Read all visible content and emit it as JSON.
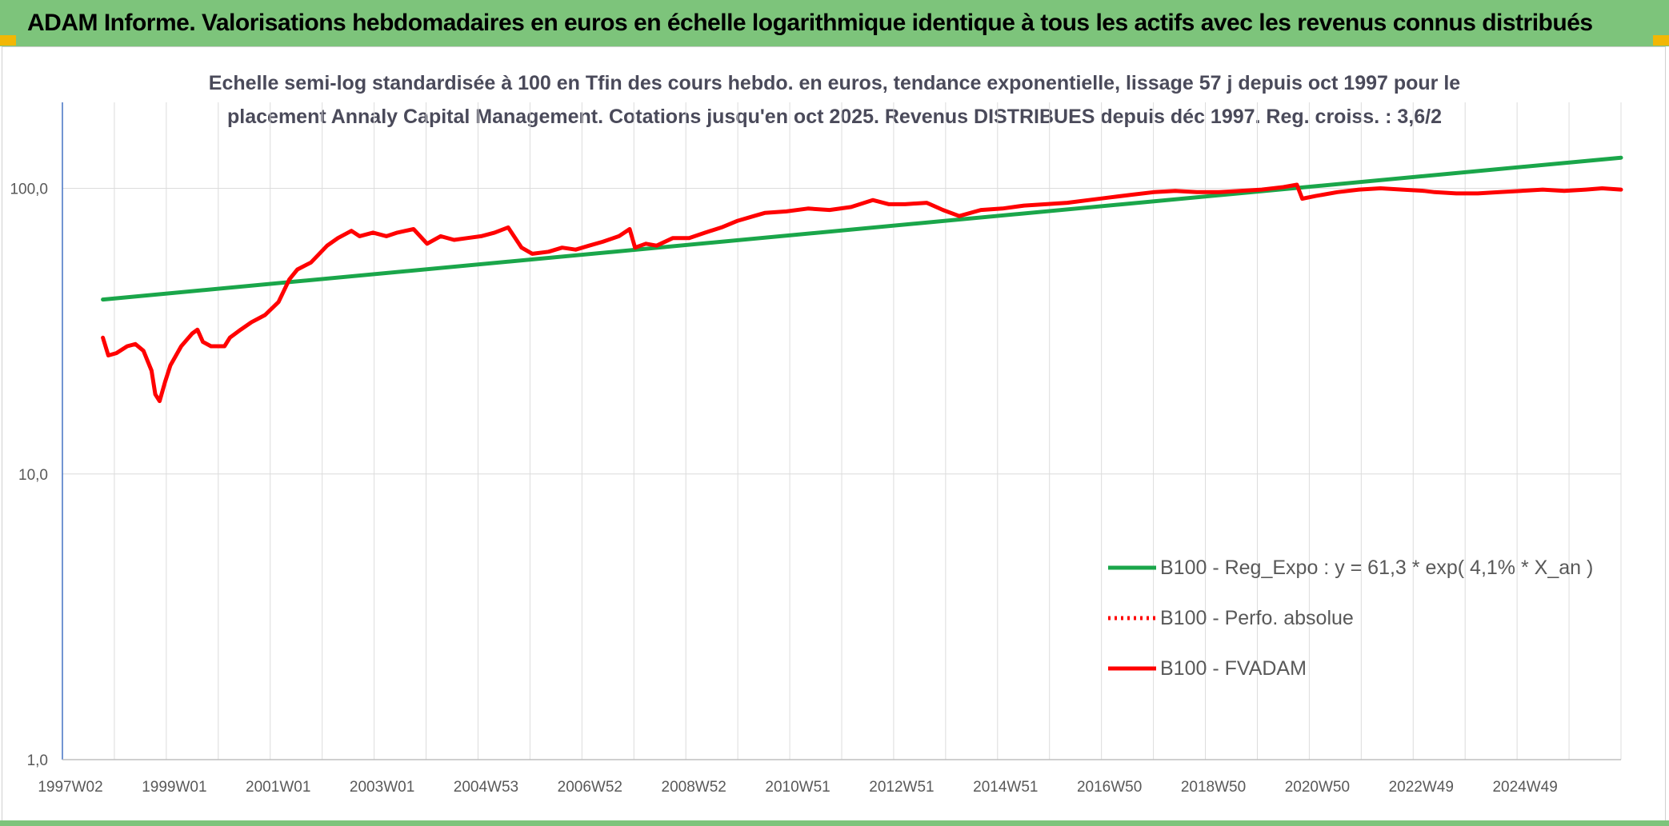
{
  "banner": {
    "title": "ADAM Informe. Valorisations hebdomadaires en euros en échelle logarithmique identique à tous les actifs avec les revenus connus distribués",
    "color": "#7dc47b"
  },
  "chart_data": {
    "type": "line",
    "title_lines": [
      "Echelle semi-log standardisée à 100 en Tfin des cours hebdo. en euros, tendance exponentielle, lissage 57 j depuis oct 1997 pour le",
      "placement Annaly Capital Management. Cotations jusqu'en oct 2025. Revenus DISTRIBUES depuis déc 1997. Reg. croiss. : 3,6/2"
    ],
    "y_scale": "log",
    "ylim": [
      1,
      200
    ],
    "y_ticks": [
      1,
      10,
      100
    ],
    "y_tick_labels": [
      "1,0",
      "10,0",
      "100,0"
    ],
    "x_tick_labels": [
      "1997W02",
      "1999W01",
      "2001W01",
      "2003W01",
      "2004W53",
      "2006W52",
      "2008W52",
      "2010W51",
      "2012W51",
      "2014W51",
      "2016W50",
      "2018W50",
      "2020W50",
      "2022W49",
      "2024W49"
    ],
    "xlim": [
      1997.0,
      2025.85
    ],
    "grid": "vertical",
    "legend_position": "right",
    "series": [
      {
        "name": "B100 - Reg_Expo : y = 61,3 * exp( 4,1% *  X_an )",
        "color": "#1aa64a",
        "style": "solid",
        "points": [
          [
            1997.75,
            40.8
          ],
          [
            2025.85,
            128
          ]
        ]
      },
      {
        "name": "B100 - Perfo. absolue",
        "color": "#ff0000",
        "style": "dotted",
        "points": []
      },
      {
        "name": "B100 - FVADAM",
        "color": "#ff0000",
        "style": "solid",
        "points": [
          [
            1997.75,
            30
          ],
          [
            1997.85,
            26
          ],
          [
            1998.0,
            26.5
          ],
          [
            1998.2,
            28
          ],
          [
            1998.35,
            28.5
          ],
          [
            1998.5,
            27
          ],
          [
            1998.65,
            23
          ],
          [
            1998.72,
            19
          ],
          [
            1998.8,
            18
          ],
          [
            1998.9,
            21
          ],
          [
            1999.0,
            24
          ],
          [
            1999.2,
            28
          ],
          [
            1999.4,
            31
          ],
          [
            1999.5,
            32
          ],
          [
            1999.6,
            29
          ],
          [
            1999.75,
            28
          ],
          [
            2000.0,
            28
          ],
          [
            2000.1,
            30
          ],
          [
            2000.3,
            32
          ],
          [
            2000.5,
            34
          ],
          [
            2000.75,
            36
          ],
          [
            2001.0,
            40
          ],
          [
            2001.2,
            48
          ],
          [
            2001.35,
            52
          ],
          [
            2001.6,
            55
          ],
          [
            2001.9,
            63
          ],
          [
            2002.1,
            67
          ],
          [
            2002.35,
            71
          ],
          [
            2002.5,
            68
          ],
          [
            2002.75,
            70
          ],
          [
            2003.0,
            68
          ],
          [
            2003.2,
            70
          ],
          [
            2003.5,
            72
          ],
          [
            2003.75,
            64
          ],
          [
            2004.0,
            68
          ],
          [
            2004.25,
            66
          ],
          [
            2004.5,
            67
          ],
          [
            2004.75,
            68
          ],
          [
            2005.0,
            70
          ],
          [
            2005.25,
            73
          ],
          [
            2005.5,
            62
          ],
          [
            2005.7,
            59
          ],
          [
            2006.0,
            60
          ],
          [
            2006.25,
            62
          ],
          [
            2006.5,
            61
          ],
          [
            2006.75,
            63
          ],
          [
            2007.0,
            65
          ],
          [
            2007.3,
            68
          ],
          [
            2007.5,
            72
          ],
          [
            2007.6,
            62
          ],
          [
            2007.8,
            64
          ],
          [
            2008.0,
            63
          ],
          [
            2008.3,
            67
          ],
          [
            2008.6,
            67
          ],
          [
            2008.9,
            70
          ],
          [
            2009.2,
            73
          ],
          [
            2009.5,
            77
          ],
          [
            2009.8,
            80
          ],
          [
            2010.0,
            82
          ],
          [
            2010.4,
            83
          ],
          [
            2010.8,
            85
          ],
          [
            2011.2,
            84
          ],
          [
            2011.6,
            86
          ],
          [
            2012.0,
            91
          ],
          [
            2012.3,
            88
          ],
          [
            2012.6,
            88
          ],
          [
            2013.0,
            89
          ],
          [
            2013.3,
            84
          ],
          [
            2013.6,
            80
          ],
          [
            2014.0,
            84
          ],
          [
            2014.4,
            85
          ],
          [
            2014.8,
            87
          ],
          [
            2015.2,
            88
          ],
          [
            2015.6,
            89
          ],
          [
            2016.0,
            91
          ],
          [
            2016.4,
            93
          ],
          [
            2016.8,
            95
          ],
          [
            2017.2,
            97
          ],
          [
            2017.6,
            98
          ],
          [
            2018.0,
            97
          ],
          [
            2018.4,
            97
          ],
          [
            2018.8,
            98
          ],
          [
            2019.2,
            99
          ],
          [
            2019.6,
            101
          ],
          [
            2019.85,
            103
          ],
          [
            2019.95,
            92
          ],
          [
            2020.2,
            94
          ],
          [
            2020.6,
            97
          ],
          [
            2021.0,
            99
          ],
          [
            2021.4,
            100
          ],
          [
            2021.8,
            99
          ],
          [
            2022.2,
            98
          ],
          [
            2022.4,
            97
          ],
          [
            2022.8,
            96
          ],
          [
            2023.2,
            96
          ],
          [
            2023.6,
            97
          ],
          [
            2024.0,
            98
          ],
          [
            2024.4,
            99
          ],
          [
            2024.8,
            98
          ],
          [
            2025.2,
            99
          ],
          [
            2025.5,
            100
          ],
          [
            2025.85,
            99
          ]
        ]
      }
    ]
  }
}
